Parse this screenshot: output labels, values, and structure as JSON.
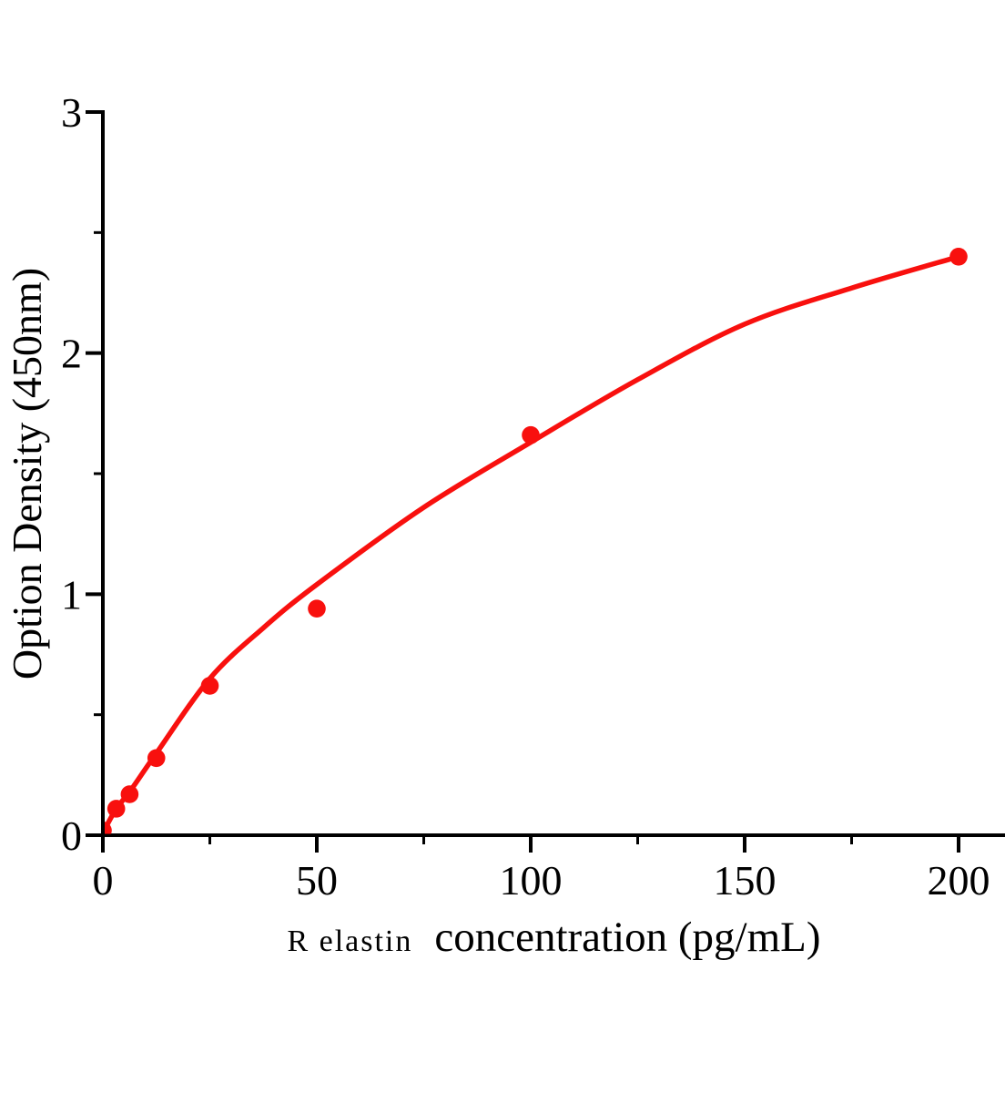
{
  "chart_data": {
    "type": "scatter",
    "title": "",
    "xlabel_prefix": "R elastin",
    "xlabel_main": "concentration（pg/mL）",
    "ylabel": "Option Density（450nm）",
    "xlim": [
      0,
      211
    ],
    "ylim": [
      0,
      3
    ],
    "x_major_ticks": [
      0,
      50,
      100,
      150,
      200
    ],
    "x_minor_ticks": [
      25,
      75,
      125,
      175
    ],
    "y_major_ticks": [
      0,
      1,
      2,
      3
    ],
    "y_minor_ticks": [
      0.5,
      1.5,
      2.5
    ],
    "grid": false,
    "legend": "none",
    "points": [
      {
        "x": 0,
        "od": 0.02
      },
      {
        "x": 3.125,
        "od": 0.11
      },
      {
        "x": 6.25,
        "od": 0.17
      },
      {
        "x": 12.5,
        "od": 0.32
      },
      {
        "x": 25,
        "od": 0.62
      },
      {
        "x": 50,
        "od": 0.94
      },
      {
        "x": 100,
        "od": 1.66
      },
      {
        "x": 200,
        "od": 2.4
      }
    ],
    "fit_curve": [
      [
        0,
        0.01
      ],
      [
        3.125,
        0.11
      ],
      [
        6.25,
        0.18
      ],
      [
        12.5,
        0.34
      ],
      [
        25,
        0.65
      ],
      [
        37.5,
        0.86
      ],
      [
        50,
        1.04
      ],
      [
        75,
        1.36
      ],
      [
        100,
        1.63
      ],
      [
        125,
        1.89
      ],
      [
        150,
        2.12
      ],
      [
        175,
        2.27
      ],
      [
        200,
        2.4
      ]
    ],
    "colors": {
      "series": "#f8100e",
      "axis": "#000000",
      "background": "#ffffff"
    }
  }
}
